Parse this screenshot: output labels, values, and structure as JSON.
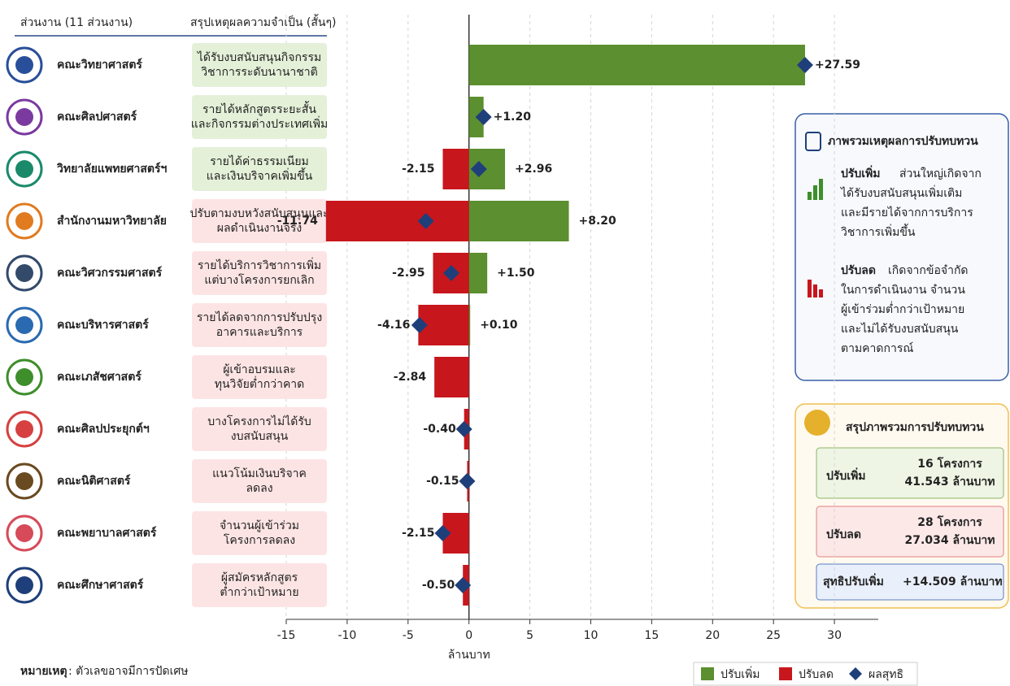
{
  "chart_data": {
    "type": "bar",
    "orientation": "horizontal",
    "column_headers": [
      "ส่วนงาน (11 ส่วนงาน)",
      "สรุปเหตุผลความจำเป็น (สั้นๆ)"
    ],
    "categories": [
      "คณะวิทยาศาสตร์",
      "คณะศิลปศาสตร์",
      "วิทยาลัยแพทยศาสตร์ฯ",
      "สำนักงานมหาวิทยาลัย",
      "คณะวิศวกรรมศาสตร์",
      "คณะบริหารศาสตร์",
      "คณะเภสัชศาสตร์",
      "คณะศิลปประยุกต์ฯ",
      "คณะนิติศาสตร์",
      "คณะพยาบาลศาสตร์",
      "คณะศึกษาศาสตร์"
    ],
    "reasons": [
      [
        "ได้รับงบสนับสนุนกิจกรรม",
        "วิชาการระดับนานาชาติ"
      ],
      [
        "รายได้หลักสูตรระยะสั้น",
        "และกิจกรรมต่างประเทศเพิ่ม"
      ],
      [
        "รายได้ค่าธรรมเนียม",
        "และเงินบริจาคเพิ่มขึ้น"
      ],
      [
        "ปรับตามงบหวังสนับสนุนและ",
        "ผลดำเนินงานจริง"
      ],
      [
        "รายได้บริการวิชาการเพิ่ม",
        "แต่บางโครงการยกเลิก"
      ],
      [
        "รายได้ลดจากการปรับปรุง",
        "อาคารและบริการ"
      ],
      [
        "ผู้เข้าอบรมและ",
        "ทุนวิจัยต่ำกว่าคาด"
      ],
      [
        "บางโครงการไม่ได้รับ",
        "งบสนับสนุน"
      ],
      [
        "แนวโน้มเงินบริจาค",
        "ลดลง"
      ],
      [
        "จำนวนผู้เข้าร่วม",
        "โครงการลดลง"
      ],
      [
        "ผู้สมัครหลักสูตร",
        "ต่ำกว่าเป้าหมาย"
      ]
    ],
    "series": [
      {
        "name": "ปรับเพิ่ม",
        "color": "#5b8f2f",
        "values": [
          27.59,
          1.2,
          2.96,
          8.2,
          1.5,
          0.1,
          null,
          null,
          null,
          null,
          null
        ],
        "value_labels": [
          "+27.59",
          "+1.20",
          "+2.96",
          "+8.20",
          "+1.50",
          "+0.10",
          null,
          null,
          null,
          null,
          null
        ]
      },
      {
        "name": "ปรับลด",
        "color": "#c8161d",
        "values": [
          null,
          null,
          -2.15,
          -11.74,
          -2.95,
          -4.16,
          -2.84,
          -0.4,
          -0.15,
          -2.15,
          -0.5
        ],
        "value_labels": [
          null,
          null,
          "-2.15",
          "-11.74",
          "-2.95",
          "-4.16",
          "-2.84",
          "-0.40",
          "-0.15",
          "-2.15",
          "-0.50"
        ]
      },
      {
        "name": "ผลสุทธิ",
        "color": "#1f3f7a",
        "values": [
          27.59,
          1.2,
          0.81,
          -3.54,
          -1.45,
          -4.06,
          null,
          -0.4,
          -0.15,
          -2.15,
          -0.5
        ]
      }
    ],
    "xlim": [
      -15,
      33.6
    ],
    "xticks": [
      -15,
      -10,
      -5,
      0,
      5,
      10,
      15,
      20,
      25,
      30
    ],
    "xlabel": "ล้านบาท",
    "grid": true,
    "legend": "bottom-right"
  },
  "note": {
    "label": "หมายเหตุ",
    "text": ": ตัวเลขอาจมีการปัดเศษ"
  },
  "reasons_panel": {
    "title": "ภาพรวมเหตุผลการปรับทบทวน",
    "increase": {
      "keyword": "ปรับเพิ่ม",
      "lines": [
        "ส่วนใหญ่เกิดจาก",
        "ได้รับงบสนับสนุนเพิ่มเติม",
        "และมีรายได้จากการบริการ",
        "วิชาการเพิ่มขึ้น"
      ]
    },
    "decrease": {
      "keyword": "ปรับลด",
      "lines": [
        "เกิดจากข้อจำกัด",
        "ในการดำเนินงาน จำนวน",
        "ผู้เข้าร่วมต่ำกว่าเป้าหมาย",
        "และไม่ได้รับงบสนับสนุน",
        "ตามคาดการณ์"
      ]
    }
  },
  "summary_panel": {
    "title": "สรุปภาพรวมการปรับทบทวน",
    "increase": {
      "label": "ปรับเพิ่ม",
      "lines": [
        "16 โครงการ",
        "41.543 ล้านบาท"
      ]
    },
    "decrease": {
      "label": "ปรับลด",
      "lines": [
        "28 โครงการ",
        "27.034 ล้านบาท"
      ]
    },
    "net": {
      "label": "สุทธิปรับเพิ่ม",
      "value": "+14.509 ล้านบาท"
    }
  }
}
